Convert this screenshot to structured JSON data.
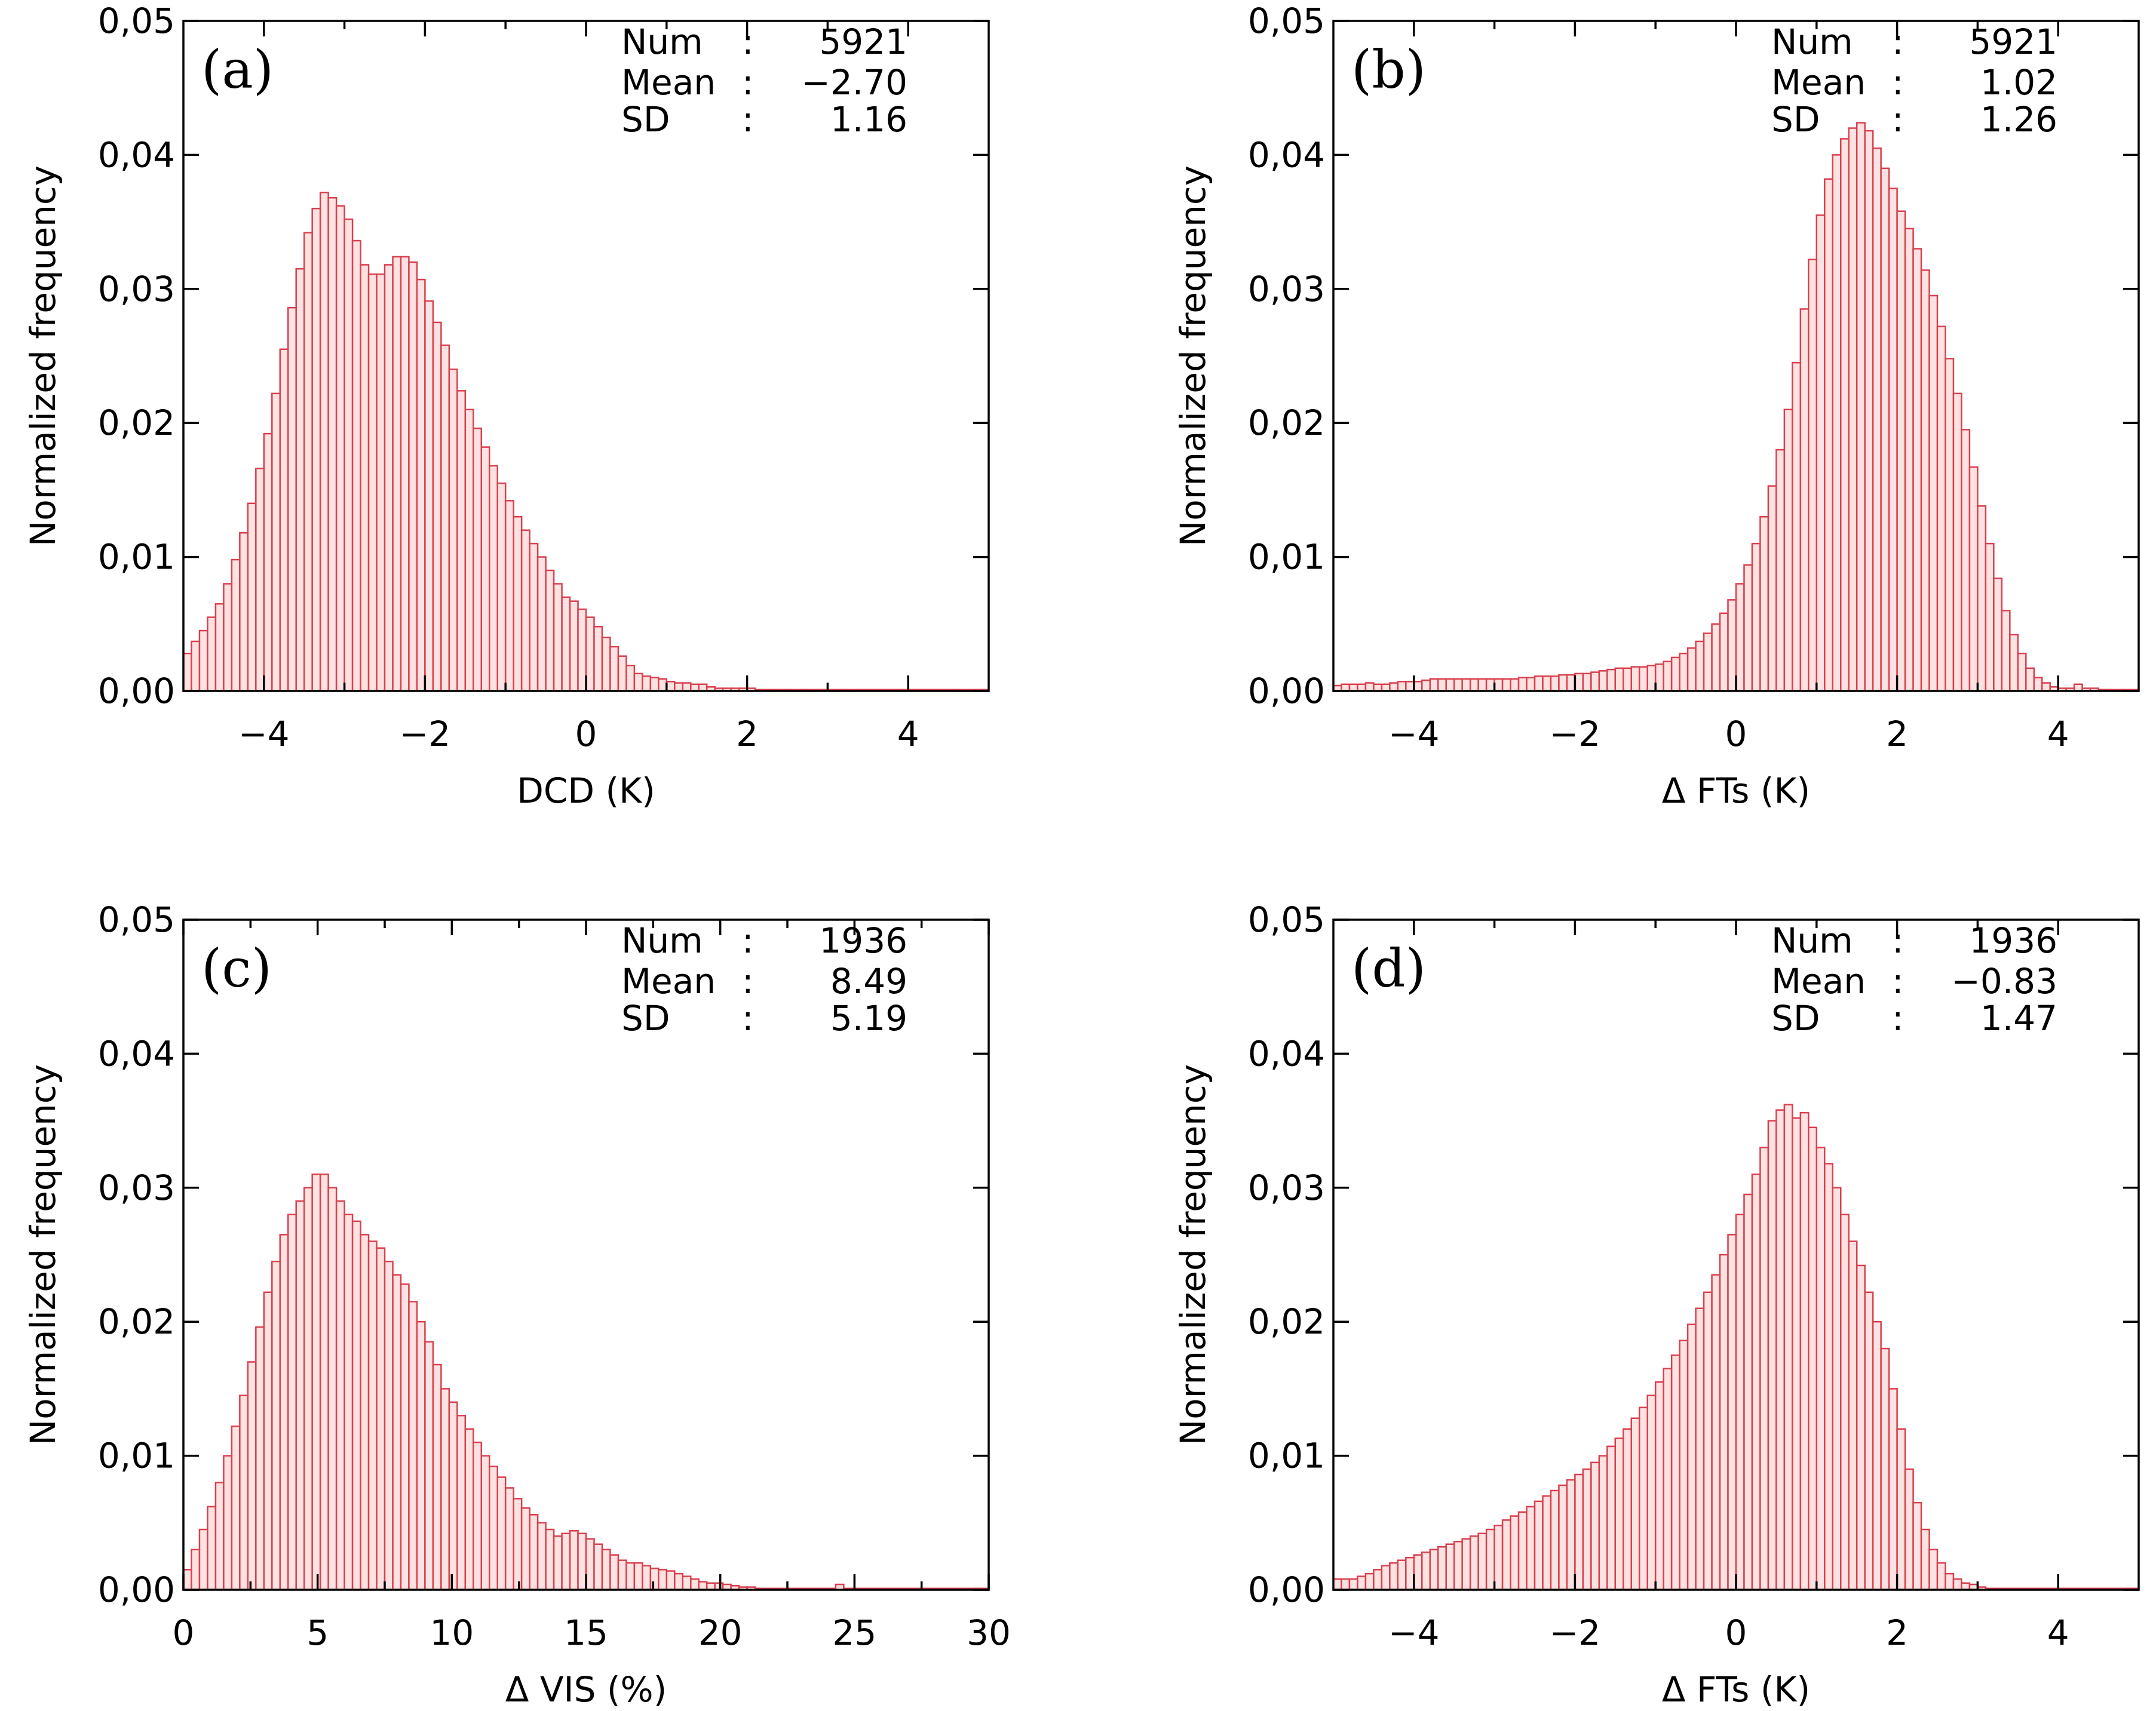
{
  "colors": {
    "bar_fill": "#fde2e2",
    "bar_edge": "#d9404e",
    "axis": "#000000"
  },
  "chart_data": [
    {
      "type": "bar",
      "panel": "(a)",
      "xlabel": "DCD (K)",
      "ylabel": "Normalized frequency",
      "xlim": [
        -5,
        5
      ],
      "ylim": [
        0,
        0.05
      ],
      "xticks": [
        -4,
        -2,
        0,
        2,
        4
      ],
      "xtick_labels": [
        "−4",
        "−2",
        "0",
        "2",
        "4"
      ],
      "yticks": [
        0,
        0.01,
        0.02,
        0.03,
        0.04,
        0.05
      ],
      "ytick_labels": [
        "0,00",
        "0,01",
        "0,02",
        "0,03",
        "0,04",
        "0,05"
      ],
      "bin_start": -5,
      "bin_width": 0.1,
      "values": [
        0.0028,
        0.0037,
        0.0045,
        0.0055,
        0.0065,
        0.008,
        0.0098,
        0.0118,
        0.014,
        0.0166,
        0.0192,
        0.0222,
        0.0255,
        0.0286,
        0.0315,
        0.0342,
        0.036,
        0.0372,
        0.0368,
        0.0362,
        0.0352,
        0.0336,
        0.0318,
        0.0311,
        0.0311,
        0.0318,
        0.0324,
        0.0324,
        0.032,
        0.0307,
        0.0291,
        0.0275,
        0.0258,
        0.024,
        0.0224,
        0.021,
        0.0196,
        0.0182,
        0.0168,
        0.0155,
        0.0142,
        0.013,
        0.012,
        0.011,
        0.01,
        0.009,
        0.008,
        0.007,
        0.0067,
        0.0061,
        0.0055,
        0.0048,
        0.004,
        0.0033,
        0.0026,
        0.0019,
        0.0013,
        0.0011,
        0.001,
        0.0009,
        0.0007,
        0.0006,
        0.0006,
        0.0005,
        0.0005,
        0.0003,
        0.0002,
        0.0002,
        0.0002,
        0.0002,
        0.0002,
        0.0001,
        0.0001,
        0.0001,
        0.0001,
        0.0001,
        0.0001,
        0.0001,
        0.0001,
        0.0001,
        0.0001,
        0.0001,
        0.0001,
        0.0001,
        0.0001,
        0.0001,
        0.0001,
        0.0001,
        0.0001,
        0.0001,
        0.0001,
        0.0001,
        0.0001,
        0.0001,
        0.0001,
        0.0001,
        0.0001,
        0.0001,
        0.0001,
        0.0001
      ],
      "stats": {
        "num_label": "Num",
        "num": "5921",
        "mean_label": "Mean",
        "mean": "−2.70",
        "sd_label": "SD",
        "sd": "1.16"
      }
    },
    {
      "type": "bar",
      "panel": "(b)",
      "xlabel": "Δ FTs (K)",
      "ylabel": "Normalized frequency",
      "xlim": [
        -5,
        5
      ],
      "ylim": [
        0,
        0.05
      ],
      "xticks": [
        -4,
        -2,
        0,
        2,
        4
      ],
      "xtick_labels": [
        "−4",
        "−2",
        "0",
        "2",
        "4"
      ],
      "yticks": [
        0,
        0.01,
        0.02,
        0.03,
        0.04,
        0.05
      ],
      "ytick_labels": [
        "0,00",
        "0,01",
        "0,02",
        "0,03",
        "0,04",
        "0,05"
      ],
      "bin_start": -5,
      "bin_width": 0.1,
      "values": [
        0.0004,
        0.0005,
        0.0005,
        0.0005,
        0.0006,
        0.0005,
        0.0005,
        0.0006,
        0.0007,
        0.0007,
        0.0007,
        0.0008,
        0.0009,
        0.0009,
        0.0009,
        0.0009,
        0.0009,
        0.0009,
        0.0009,
        0.0009,
        0.0009,
        0.0009,
        0.0009,
        0.001,
        0.001,
        0.0011,
        0.0011,
        0.0011,
        0.0012,
        0.0012,
        0.0013,
        0.0013,
        0.0014,
        0.0015,
        0.0016,
        0.0017,
        0.0017,
        0.0018,
        0.0018,
        0.0019,
        0.002,
        0.0022,
        0.0025,
        0.0028,
        0.0032,
        0.0037,
        0.0043,
        0.005,
        0.0058,
        0.0068,
        0.008,
        0.0094,
        0.011,
        0.013,
        0.0153,
        0.018,
        0.021,
        0.0245,
        0.0285,
        0.0322,
        0.0355,
        0.0382,
        0.04,
        0.0412,
        0.042,
        0.0424,
        0.0418,
        0.0405,
        0.039,
        0.0375,
        0.0358,
        0.0345,
        0.033,
        0.0314,
        0.0295,
        0.0272,
        0.0248,
        0.0222,
        0.0195,
        0.0167,
        0.0138,
        0.011,
        0.0084,
        0.006,
        0.0042,
        0.0028,
        0.0017,
        0.001,
        0.0006,
        0.0003,
        0.0002,
        0.0002,
        0.0005,
        0.0002,
        0.0002,
        0.0001,
        0.0001,
        0.0001,
        0.0001,
        0.0001
      ],
      "stats": {
        "num_label": "Num",
        "num": "5921",
        "mean_label": "Mean",
        "mean": "1.02",
        "sd_label": "SD",
        "sd": "1.26"
      }
    },
    {
      "type": "bar",
      "panel": "(c)",
      "xlabel": "Δ VIS (%)",
      "ylabel": "Normalized frequency",
      "xlim": [
        0,
        30
      ],
      "ylim": [
        0,
        0.05
      ],
      "xticks": [
        0,
        5,
        10,
        15,
        20,
        25,
        30
      ],
      "xtick_labels": [
        "0",
        "5",
        "10",
        "15",
        "20",
        "25",
        "30"
      ],
      "yticks": [
        0,
        0.01,
        0.02,
        0.03,
        0.04,
        0.05
      ],
      "ytick_labels": [
        "0,00",
        "0,01",
        "0,02",
        "0,03",
        "0,04",
        "0,05"
      ],
      "bin_start": 0,
      "bin_width": 0.3,
      "values": [
        0.0015,
        0.003,
        0.0045,
        0.0062,
        0.008,
        0.01,
        0.0122,
        0.0145,
        0.017,
        0.0196,
        0.0222,
        0.0245,
        0.0265,
        0.028,
        0.029,
        0.03,
        0.031,
        0.031,
        0.03,
        0.029,
        0.028,
        0.0275,
        0.0265,
        0.026,
        0.0255,
        0.0245,
        0.0235,
        0.0228,
        0.0215,
        0.02,
        0.0185,
        0.0168,
        0.015,
        0.014,
        0.013,
        0.012,
        0.011,
        0.01,
        0.0092,
        0.0084,
        0.0076,
        0.0068,
        0.0061,
        0.0056,
        0.005,
        0.0045,
        0.004,
        0.0042,
        0.0044,
        0.0042,
        0.0038,
        0.0034,
        0.003,
        0.0026,
        0.0022,
        0.002,
        0.002,
        0.0018,
        0.0016,
        0.0015,
        0.0014,
        0.0012,
        0.001,
        0.0008,
        0.0006,
        0.0005,
        0.0005,
        0.0004,
        0.0003,
        0.0002,
        0.0002,
        0.0001,
        0.0001,
        0.0001,
        0.0001,
        0.0001,
        0.0001,
        0.0001,
        0.0001,
        0.0001,
        0.0001,
        0.0004,
        0.0001,
        0.0001,
        0.0001,
        0.0001,
        0.0001,
        0.0001,
        0.0001,
        0.0001,
        0.0001,
        0.0001,
        0.0001,
        0.0001,
        0.0001,
        0.0001,
        0.0001,
        0.0001,
        0.0001,
        0.0001
      ],
      "stats": {
        "num_label": "Num",
        "num": "1936",
        "mean_label": "Mean",
        "mean": "8.49",
        "sd_label": "SD",
        "sd": "5.19"
      }
    },
    {
      "type": "bar",
      "panel": "(d)",
      "xlabel": "Δ FTs (K)",
      "ylabel": "Normalized frequency",
      "xlim": [
        -5,
        5
      ],
      "ylim": [
        0,
        0.05
      ],
      "xticks": [
        -4,
        -2,
        0,
        2,
        4
      ],
      "xtick_labels": [
        "−4",
        "−2",
        "0",
        "2",
        "4"
      ],
      "yticks": [
        0,
        0.01,
        0.02,
        0.03,
        0.04,
        0.05
      ],
      "ytick_labels": [
        "0,00",
        "0,01",
        "0,02",
        "0,03",
        "0,04",
        "0,05"
      ],
      "bin_start": -5,
      "bin_width": 0.1,
      "values": [
        0.0008,
        0.0008,
        0.0008,
        0.001,
        0.0012,
        0.0015,
        0.0018,
        0.002,
        0.0022,
        0.0024,
        0.0026,
        0.0028,
        0.003,
        0.0032,
        0.0034,
        0.0036,
        0.0038,
        0.004,
        0.0042,
        0.0045,
        0.0048,
        0.0052,
        0.0055,
        0.0058,
        0.0062,
        0.0066,
        0.007,
        0.0074,
        0.0078,
        0.0082,
        0.0086,
        0.009,
        0.0095,
        0.01,
        0.0107,
        0.0113,
        0.012,
        0.0128,
        0.0136,
        0.0145,
        0.0155,
        0.0165,
        0.0175,
        0.0186,
        0.0198,
        0.021,
        0.0222,
        0.0235,
        0.025,
        0.0265,
        0.028,
        0.0295,
        0.031,
        0.033,
        0.035,
        0.0358,
        0.0362,
        0.0352,
        0.0356,
        0.0345,
        0.033,
        0.0318,
        0.03,
        0.028,
        0.026,
        0.0242,
        0.0222,
        0.02,
        0.018,
        0.015,
        0.012,
        0.009,
        0.0065,
        0.0045,
        0.003,
        0.002,
        0.0012,
        0.0008,
        0.0005,
        0.0004,
        0.0002,
        0.0001,
        0.0001,
        0.0001,
        0.0001,
        0.0001,
        0.0001,
        0.0001,
        0.0001,
        0.0001,
        0.0001,
        0.0001,
        0.0001,
        0.0001,
        0.0001,
        0.0001,
        0.0001,
        0.0001,
        0.0001,
        0.0001
      ],
      "stats": {
        "num_label": "Num",
        "num": "1936",
        "mean_label": "Mean",
        "mean": "−0.83",
        "sd_label": "SD",
        "sd": "1.47"
      }
    }
  ]
}
